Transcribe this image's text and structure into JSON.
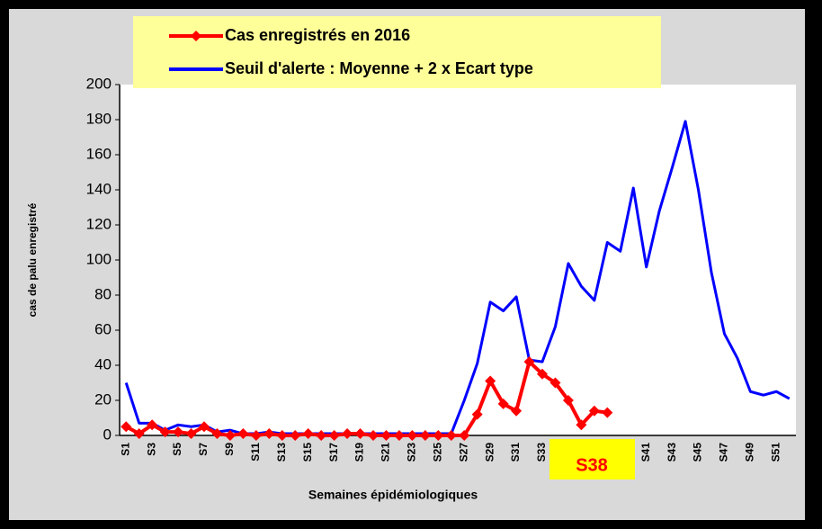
{
  "chart_data": {
    "type": "line",
    "categories": [
      "S1",
      null,
      "S3",
      null,
      "S5",
      null,
      "S7",
      null,
      "S9",
      null,
      "S11",
      null,
      "S13",
      null,
      "S15",
      null,
      "S17",
      null,
      "S19",
      null,
      "S21",
      null,
      "S23",
      null,
      "S25",
      null,
      "S27",
      null,
      "S29",
      null,
      "S31",
      null,
      "S33",
      null,
      null,
      null,
      null,
      null,
      null,
      null,
      "S41",
      null,
      "S43",
      null,
      "S45",
      null,
      "S47",
      null,
      "S49",
      null,
      "S51",
      null
    ],
    "series": [
      {
        "name": "Cas enregistrés en 2016",
        "color": "#ff0000",
        "marker": "diamond",
        "values": [
          5,
          1,
          6,
          2,
          2,
          1,
          5,
          1,
          0,
          1,
          0,
          1,
          0,
          0,
          1,
          0,
          0,
          1,
          1,
          0,
          0,
          0,
          0,
          0,
          0,
          0,
          0,
          12,
          31,
          18,
          14,
          42,
          35,
          30,
          20,
          6,
          14,
          13,
          null,
          null,
          null,
          null,
          null,
          null,
          null,
          null,
          null,
          null,
          null,
          null,
          null,
          null
        ]
      },
      {
        "name": "Seuil d'alerte : Moyenne + 2 x Ecart type",
        "color": "#0000ff",
        "values": [
          30,
          7,
          7,
          3,
          6,
          5,
          6,
          2,
          3,
          1,
          1,
          2,
          1,
          1,
          1,
          1,
          1,
          1,
          1,
          1,
          1,
          1,
          1,
          1,
          1,
          1,
          20,
          41,
          76,
          71,
          79,
          43,
          42,
          62,
          98,
          85,
          77,
          110,
          105,
          141,
          96,
          128,
          153,
          179,
          140,
          93,
          58,
          44,
          25,
          23,
          25,
          21
        ]
      }
    ],
    "ylim": [
      0,
      200
    ],
    "yticks": [
      0,
      20,
      40,
      60,
      80,
      100,
      120,
      140,
      160,
      180,
      200
    ],
    "ylabel": "cas de palu enregistré",
    "xlabel": "Semaines épidémiologiques",
    "annotation": "S38"
  }
}
